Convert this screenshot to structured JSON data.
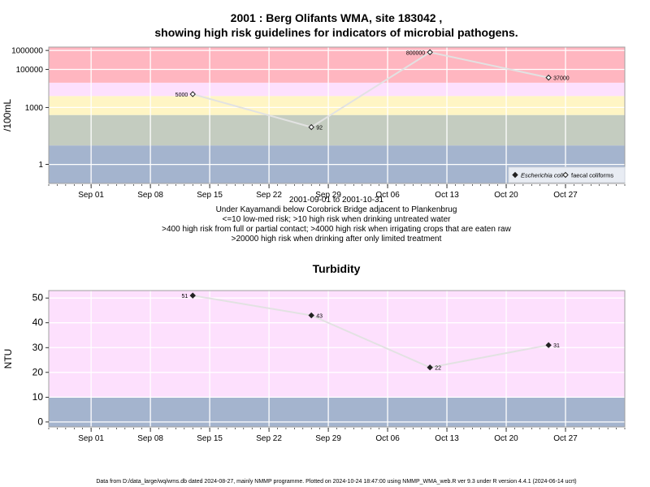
{
  "title_lines": [
    "2001 : Berg Olifants WMA, site 183042 ,",
    "showing high risk guidelines for indicators of microbial pathogens."
  ],
  "caption_lines": [
    "2001-09-01 to 2001-10-31",
    "Under Kayamandi below Corobrick Bridge adjacent to Plankenbrug",
    "<=10 low-med risk; >10 high risk when drinking untreated water",
    ">400 high risk from full or partial contact; >4000 high risk when irrigating crops that are eaten raw",
    ">20000 high risk when drinking after only limited treatment"
  ],
  "footer": "Data from D:/data_large/wq/wms.db dated 2024-08-27, mainly NMMP programme. Plotted on 2024-10-24 18:47:00 using NMMP_WMA_web.R ver 9.3 under R version 4.4.1 (2024-06-14 ucrt)",
  "colors": {
    "band_low": "#a4b4ce",
    "band_green": "#c4ccc0",
    "band_yellow": "#fff5c4",
    "band_pink": "#fde0fd",
    "band_red": "#ffb6c0",
    "line": "#e2e2e2",
    "grid": "#ffffff",
    "point": "#222222"
  },
  "chart_data": [
    {
      "type": "line",
      "title": "",
      "xlabel": "",
      "ylabel": "/100mL",
      "y_scale": "log10",
      "ylim": [
        0.1,
        1500000
      ],
      "yticks": [
        1,
        1000,
        100000,
        1000000
      ],
      "ytick_labels": [
        "1",
        "1000",
        "100000",
        "1000000"
      ],
      "xlim": [
        "2001-08-27",
        "2001-11-03"
      ],
      "xticks": [
        "2001-09-01",
        "2001-09-08",
        "2001-09-15",
        "2001-09-22",
        "2001-09-29",
        "2001-10-06",
        "2001-10-13",
        "2001-10-20",
        "2001-10-27"
      ],
      "xtick_labels": [
        "Sep 01",
        "Sep 08",
        "Sep 15",
        "Sep 22",
        "Sep 29",
        "Oct 06",
        "Oct 13",
        "Oct 20",
        "Oct 27"
      ],
      "grid": true,
      "legend_position": "bottom-right",
      "bands": [
        {
          "from": 0.1,
          "to": 10,
          "color": "band_low"
        },
        {
          "from": 10,
          "to": 400,
          "color": "band_green"
        },
        {
          "from": 400,
          "to": 4000,
          "color": "band_yellow"
        },
        {
          "from": 4000,
          "to": 20000,
          "color": "band_pink"
        },
        {
          "from": 20000,
          "to": 1500000,
          "color": "band_red"
        }
      ],
      "series": [
        {
          "name": "Escherichia coli",
          "marker": "filled-diamond",
          "x": [],
          "y": [],
          "labels": []
        },
        {
          "name": "faecal coliforms",
          "marker": "open-diamond",
          "x": [
            "2001-09-13",
            "2001-09-27",
            "2001-10-11",
            "2001-10-25"
          ],
          "y": [
            5000,
            92,
            800000,
            37000
          ],
          "labels": [
            "5000",
            "92",
            "800000",
            "37000"
          ]
        }
      ]
    },
    {
      "type": "line",
      "title": "Turbidity",
      "xlabel": "",
      "ylabel": "NTU",
      "y_scale": "linear",
      "ylim": [
        -2,
        53
      ],
      "yticks": [
        0,
        10,
        20,
        30,
        40,
        50
      ],
      "ytick_labels": [
        "0",
        "10",
        "20",
        "30",
        "40",
        "50"
      ],
      "xlim": [
        "2001-08-27",
        "2001-11-03"
      ],
      "xticks": [
        "2001-09-01",
        "2001-09-08",
        "2001-09-15",
        "2001-09-22",
        "2001-09-29",
        "2001-10-06",
        "2001-10-13",
        "2001-10-20",
        "2001-10-27"
      ],
      "xtick_labels": [
        "Sep 01",
        "Sep 08",
        "Sep 15",
        "Sep 22",
        "Sep 29",
        "Oct 06",
        "Oct 13",
        "Oct 20",
        "Oct 27"
      ],
      "grid": true,
      "bands": [
        {
          "from": -2,
          "to": 10,
          "color": "band_low"
        },
        {
          "from": 10,
          "to": 53,
          "color": "band_pink"
        }
      ],
      "series": [
        {
          "name": "",
          "marker": "filled-diamond",
          "x": [
            "2001-09-13",
            "2001-09-27",
            "2001-10-11",
            "2001-10-25"
          ],
          "y": [
            51,
            43,
            22,
            31
          ],
          "labels": [
            "51",
            "43",
            "22",
            "31"
          ]
        }
      ]
    }
  ]
}
